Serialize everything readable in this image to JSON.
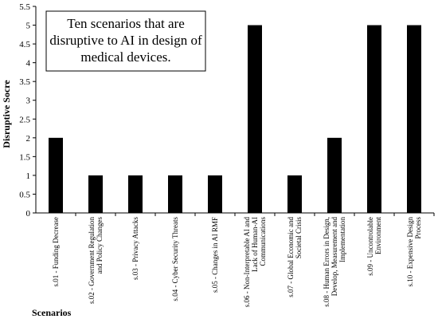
{
  "chart_data": {
    "type": "bar",
    "title": "",
    "xlabel": "Scenarios",
    "ylabel": "Disruptive Socre",
    "ylim": [
      0,
      5.5
    ],
    "yticks": [
      "0",
      "0.5",
      "1",
      "1.5",
      "2",
      "2.5",
      "3",
      "3.5",
      "4",
      "4.5",
      "5",
      "5.5"
    ],
    "grid": false,
    "legend": "none",
    "bar_color": "#000000",
    "annotation": [
      "Ten scenarios that are",
      "disruptive to AI in design of",
      "medical devices."
    ],
    "categories": [
      [
        "s.01 - Funding Decrease"
      ],
      [
        "s.02 - Government Regulation",
        "and Policy Changes"
      ],
      [
        "s.03 - Privacy Attacks"
      ],
      [
        "s.04 - Cyber Security Threats"
      ],
      [
        "s.05 - Changes in AI RMF"
      ],
      [
        "s.06 - Non-Interpretable AI and",
        "Lack of Human-AI",
        "Communications"
      ],
      [
        "s.07 - Global Economic and",
        "Societal Crisis"
      ],
      [
        "s.08 - Human Errors in Design,",
        "Develop, Measurement and",
        "Implementation"
      ],
      [
        "s.09 - Uncontrolable",
        "Environment"
      ],
      [
        "s.10 - Expensive Design",
        "Process"
      ]
    ],
    "values": [
      2,
      1,
      1,
      1,
      1,
      5,
      1,
      2,
      5,
      5
    ]
  }
}
